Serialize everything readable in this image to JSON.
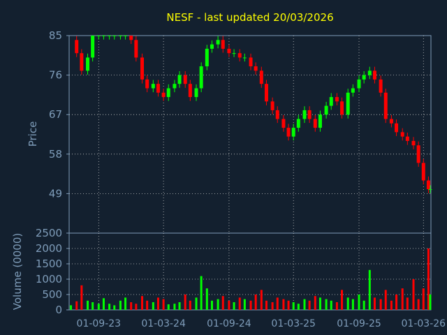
{
  "chart_data": [
    {
      "type": "candlestick",
      "title": "NESF - last updated 20/03/2026",
      "ylabel": "Price",
      "ylim": [
        40,
        85
      ],
      "yticks": [
        "85",
        "76",
        "67",
        "58",
        "49"
      ],
      "grid": true,
      "colors": {
        "up": "#00ff00",
        "down": "#ff0000",
        "grid": "#c8c8c8",
        "axis": "#7f9dba",
        "title": "#ffff00",
        "background": "#13202f"
      },
      "series": [
        {
          "x": [
            "2023-06-15",
            "2023-07-01",
            "2023-07-15",
            "2023-08-01",
            "2023-08-15",
            "2023-09-01",
            "2023-09-15",
            "2023-10-01",
            "2023-10-15",
            "2023-11-01",
            "2023-11-15",
            "2023-12-01",
            "2023-12-15",
            "2024-01-01",
            "2024-01-15",
            "2024-02-01",
            "2024-02-15",
            "2024-03-01",
            "2024-03-15",
            "2024-04-01",
            "2024-04-15",
            "2024-05-01",
            "2024-05-15",
            "2024-06-01",
            "2024-06-15",
            "2024-07-01",
            "2024-07-15",
            "2024-08-01",
            "2024-08-15",
            "2024-09-01",
            "2024-09-15",
            "2024-10-01",
            "2024-10-15",
            "2024-11-01",
            "2024-11-15",
            "2024-12-01",
            "2024-12-15",
            "2025-01-01",
            "2025-01-15",
            "2025-02-01",
            "2025-02-15",
            "2025-03-01",
            "2025-03-15",
            "2025-04-01",
            "2025-04-15",
            "2025-05-01",
            "2025-05-15",
            "2025-06-01",
            "2025-06-15",
            "2025-07-01",
            "2025-07-15",
            "2025-08-01",
            "2025-08-15",
            "2025-09-01",
            "2025-09-15",
            "2025-10-01",
            "2025-10-15",
            "2025-11-01",
            "2025-11-15",
            "2025-12-01",
            "2025-12-15",
            "2026-01-01",
            "2026-01-15",
            "2026-02-01",
            "2026-02-15",
            "2026-03-01",
            "2026-03-15",
            "2026-03-20"
          ],
          "close": [
            84,
            81,
            77,
            80,
            85,
            85,
            85,
            85,
            85,
            85,
            85,
            84,
            80,
            75,
            73,
            74,
            72,
            71,
            73,
            74,
            76,
            74,
            71,
            73,
            78,
            82,
            83,
            84,
            82,
            81,
            81,
            80,
            80,
            78,
            77,
            74,
            70,
            68,
            66,
            64,
            62,
            64,
            66,
            68,
            66,
            64,
            67,
            69,
            71,
            70,
            67,
            72,
            73,
            75,
            76,
            77,
            75,
            72,
            66,
            65,
            63,
            62,
            61,
            60,
            56,
            52,
            50,
            50
          ]
        }
      ]
    },
    {
      "type": "bar",
      "ylabel": "Volume (0000)",
      "ylim": [
        0,
        2500
      ],
      "yticks": [
        "2500",
        "2000",
        "1500",
        "1000",
        "500",
        "0"
      ],
      "xticks": [
        "01-09-23",
        "01-03-24",
        "01-09-24",
        "01-03-25",
        "01-09-25",
        "01-03-26"
      ],
      "grid": true,
      "series": [
        {
          "x": [
            "2023-06-15",
            "2023-07-01",
            "2023-07-15",
            "2023-08-01",
            "2023-08-15",
            "2023-09-01",
            "2023-09-15",
            "2023-10-01",
            "2023-10-15",
            "2023-11-01",
            "2023-11-15",
            "2023-12-01",
            "2023-12-15",
            "2024-01-01",
            "2024-01-15",
            "2024-02-01",
            "2024-02-15",
            "2024-03-01",
            "2024-03-15",
            "2024-04-01",
            "2024-04-15",
            "2024-05-01",
            "2024-05-15",
            "2024-06-01",
            "2024-06-15",
            "2024-07-01",
            "2024-07-15",
            "2024-08-01",
            "2024-08-15",
            "2024-09-01",
            "2024-09-15",
            "2024-10-01",
            "2024-10-15",
            "2024-11-01",
            "2024-11-15",
            "2024-12-01",
            "2024-12-15",
            "2025-01-01",
            "2025-01-15",
            "2025-02-01",
            "2025-02-15",
            "2025-03-01",
            "2025-03-15",
            "2025-04-01",
            "2025-04-15",
            "2025-05-01",
            "2025-05-15",
            "2025-06-01",
            "2025-06-15",
            "2025-07-01",
            "2025-07-15",
            "2025-08-01",
            "2025-08-15",
            "2025-09-01",
            "2025-09-15",
            "2025-10-01",
            "2025-10-15",
            "2025-11-01",
            "2025-11-15",
            "2025-12-01",
            "2025-12-15",
            "2026-01-01",
            "2026-01-15",
            "2026-02-01",
            "2026-02-15",
            "2026-03-01",
            "2026-03-15",
            "2026-03-20"
          ],
          "values": [
            150,
            280,
            800,
            300,
            250,
            200,
            380,
            200,
            150,
            300,
            400,
            250,
            200,
            450,
            300,
            250,
            400,
            350,
            180,
            200,
            250,
            500,
            300,
            400,
            1100,
            700,
            300,
            350,
            450,
            300,
            250,
            400,
            350,
            300,
            500,
            650,
            300,
            250,
            400,
            350,
            300,
            250,
            200,
            350,
            300,
            450,
            400,
            350,
            300,
            250,
            650,
            400,
            350,
            500,
            300,
            1300,
            400,
            350,
            650,
            300,
            500,
            700,
            400,
            1000,
            350,
            700,
            2000,
            500
          ]
        }
      ]
    }
  ]
}
